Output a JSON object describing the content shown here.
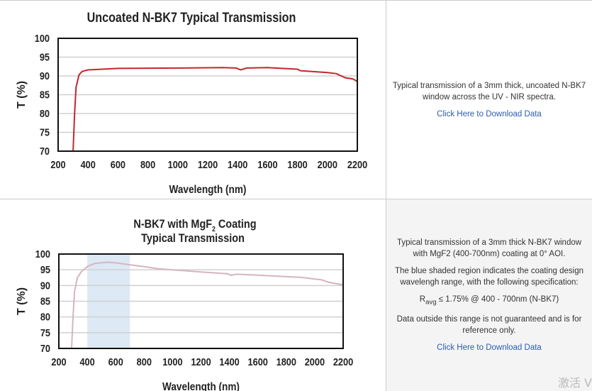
{
  "chart_data": [
    {
      "type": "line",
      "title": "Uncoated N-BK7 Typical Transmission",
      "xlabel": "Wavelength (nm)",
      "ylabel": "T (%)",
      "xlim": [
        200,
        2200
      ],
      "ylim": [
        70,
        100
      ],
      "xticks": [
        "200",
        "400",
        "600",
        "800",
        "1000",
        "1200",
        "1400",
        "1600",
        "1800",
        "2000",
        "2200"
      ],
      "yticks": [
        "70",
        "75",
        "80",
        "85",
        "90",
        "95",
        "100"
      ],
      "grid": "horizontal",
      "line_color": "#c0282d",
      "x": [
        300,
        310,
        320,
        340,
        360,
        400,
        600,
        1000,
        1300,
        1390,
        1420,
        1460,
        1600,
        1800,
        1820,
        2000,
        2060,
        2120,
        2170,
        2200
      ],
      "y": [
        70,
        80,
        87,
        90.3,
        91.2,
        91.6,
        92,
        92.1,
        92.2,
        92.1,
        91.6,
        92.1,
        92.2,
        91.8,
        91.4,
        90.9,
        90.6,
        89.5,
        89.2,
        88.5
      ]
    },
    {
      "type": "line",
      "title": "N-BK7 with MgF",
      "title_sub": "2",
      "title_rest": " Coating",
      "title_line2": "Typical Transmission",
      "xlabel": "Wavelength (nm)",
      "ylabel": "T (%)",
      "xlim": [
        200,
        2200
      ],
      "ylim": [
        70,
        100
      ],
      "xticks": [
        "200",
        "400",
        "600",
        "800",
        "1000",
        "1200",
        "1400",
        "1600",
        "1800",
        "2000",
        "2200"
      ],
      "yticks": [
        "70",
        "75",
        "80",
        "85",
        "90",
        "95",
        "100"
      ],
      "grid": "horizontal",
      "line_color": "#d5b5bd",
      "shaded_region": [
        400,
        700
      ],
      "shade_color": "#dde9f5",
      "x": [
        290,
        300,
        310,
        330,
        360,
        400,
        450,
        540,
        600,
        700,
        800,
        900,
        1000,
        1200,
        1390,
        1410,
        1450,
        1600,
        1800,
        1900,
        2050,
        2100,
        2200
      ],
      "y": [
        70,
        80,
        88,
        92.5,
        94.5,
        96,
        97,
        97.4,
        97.2,
        96.6,
        96,
        95.3,
        95,
        94.3,
        93.7,
        93.2,
        93.6,
        93.3,
        92.8,
        92.6,
        91.8,
        91,
        90.2
      ]
    }
  ],
  "desc1": {
    "text": "Typical transmission of a 3mm thick, uncoated N-BK7 window across the UV - NIR spectra.",
    "link": "Click Here to Download Data"
  },
  "desc2": {
    "p1": "Typical transmission of a 3mm thick N-BK7 window with MgF2 (400-700nm) coating at 0° AOI.",
    "p2": "The blue shaded region indicates the coating design wavelengh range, with the following specification:",
    "spec_r": "R",
    "spec_sub": "avg",
    "spec_rest": " ≤ 1.75% @ 400 - 700nm (N-BK7)",
    "p4": "Data outside this range is not guaranteed and is for reference only.",
    "link": "Click Here to Download Data"
  },
  "watermark": "激活 V"
}
